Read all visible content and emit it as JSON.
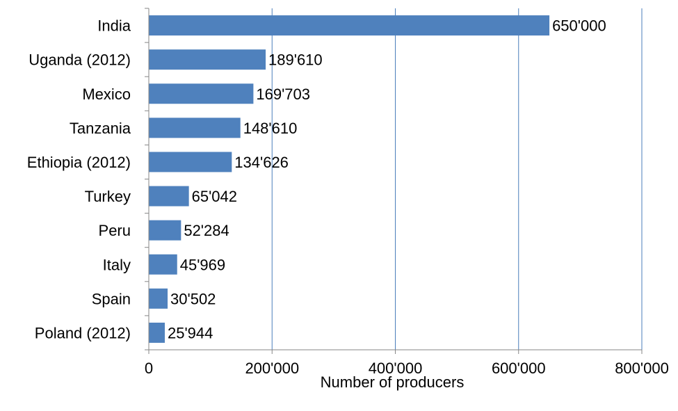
{
  "chart_data": {
    "type": "bar",
    "orientation": "horizontal",
    "categories": [
      "India",
      "Uganda (2012)",
      "Mexico",
      "Tanzania",
      "Ethiopia (2012)",
      "Turkey",
      "Peru",
      "Italy",
      "Spain",
      "Poland (2012)"
    ],
    "values": [
      650000,
      189610,
      169703,
      148610,
      134626,
      65042,
      52284,
      45969,
      30502,
      25944
    ],
    "value_labels": [
      "650'000",
      "189'610",
      "169'703",
      "148'610",
      "134'626",
      "65'042",
      "52'284",
      "45'969",
      "30'502",
      "25'944"
    ],
    "xlabel": "Number of producers",
    "xlim": [
      0,
      800000
    ],
    "xticks": [
      0,
      200000,
      400000,
      600000,
      800000
    ],
    "xtick_labels": [
      "0",
      "200'000",
      "400'000",
      "600'000",
      "800'000"
    ],
    "grid": "vertical",
    "bar_color": "#4f81bd",
    "grid_color": "#4a7ebb",
    "axis_color": "#868686"
  }
}
